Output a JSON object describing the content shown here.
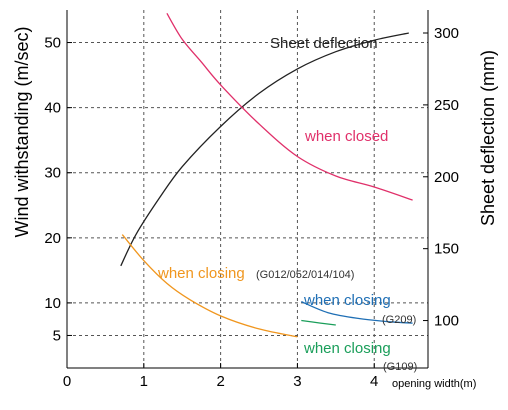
{
  "chart_data": {
    "type": "line",
    "title": "",
    "xlabel": "opening width(m)",
    "ylabel_left": "Wind withstanding (m/sec)",
    "ylabel_right": "Sheet deflection (mm)",
    "xlim": [
      0,
      4.7
    ],
    "ylim_left": [
      0,
      55
    ],
    "ylim_right": [
      67,
      316
    ],
    "x_ticks": [
      "0",
      "1",
      "2",
      "3",
      "4"
    ],
    "y_ticks_left": [
      "5",
      "10",
      "20",
      "30",
      "40",
      "50"
    ],
    "y_ticks_right": [
      "100",
      "150",
      "200",
      "250",
      "300"
    ],
    "grid": true,
    "series": [
      {
        "name": "Sheet deflection",
        "axis": "right",
        "color": "#222222",
        "x": [
          0.7,
          0.9,
          1.2,
          1.5,
          2.0,
          2.5,
          3.0,
          3.5,
          4.0,
          4.45
        ],
        "y": [
          138,
          160,
          185,
          207,
          235,
          258,
          275,
          287,
          295,
          300
        ]
      },
      {
        "name": "when closed",
        "axis": "left",
        "color": "#e0306a",
        "x": [
          1.3,
          1.5,
          1.75,
          2.0,
          2.5,
          3.0,
          3.5,
          4.0,
          4.5
        ],
        "y": [
          54.5,
          50.5,
          47.0,
          43.5,
          37.5,
          32.5,
          29.5,
          27.8,
          25.8
        ]
      },
      {
        "name": "when closing",
        "label_suffix": "(G012/052/014/104)",
        "axis": "left",
        "color": "#f0961e",
        "x": [
          0.72,
          1.0,
          1.3,
          1.6,
          2.0,
          2.5,
          3.0
        ],
        "y": [
          20.5,
          16.5,
          13.0,
          10.5,
          8.0,
          6.0,
          4.8
        ]
      },
      {
        "name": "when closing",
        "label_suffix": "(G209)",
        "axis": "left",
        "color": "#1f6fb5",
        "x": [
          3.05,
          3.4,
          3.8,
          4.2,
          4.5
        ],
        "y": [
          10.2,
          8.5,
          7.6,
          7.1,
          6.9
        ]
      },
      {
        "name": "when closing",
        "label_suffix": "(G109)",
        "axis": "left",
        "color": "#1a9e5a",
        "x": [
          3.05,
          3.3,
          3.5
        ],
        "y": [
          7.3,
          6.9,
          6.6
        ]
      }
    ]
  }
}
